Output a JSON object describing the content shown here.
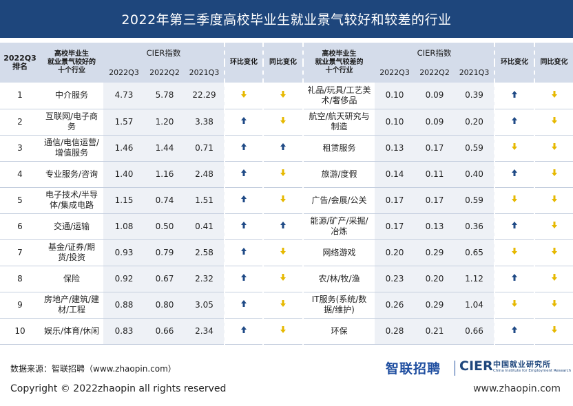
{
  "title": "2022年第三季度高校毕业生就业景气较好和较差的行业",
  "colors": {
    "header_bg": "#1e467c",
    "table_header_bg": "#d4dcea",
    "up_arrow": "#1f4a86",
    "down_arrow": "#e6b800"
  },
  "headers": {
    "rank": "2022Q3\n排名",
    "good_industry": "高校毕业生\n就业景气较好的\n十个行业",
    "bad_industry": "高校毕业生\n就业景气较差的\n十个行业",
    "cier_index": "CIER指数",
    "q2022q3": "2022Q3",
    "q2022q2": "2022Q2",
    "q2021q3": "2021Q3",
    "qoq": "环比变化",
    "yoy": "同比变化"
  },
  "chart_data": {
    "type": "table",
    "title": "2022年第三季度高校毕业生就业景气较好和较差的行业",
    "columns": [
      "2022Q3排名",
      "高校毕业生就业景气较好的十个行业",
      "2022Q3",
      "2022Q2",
      "2021Q3",
      "环比变化",
      "同比变化",
      "高校毕业生就业景气较差的十个行业",
      "2022Q3",
      "2022Q2",
      "2021Q3",
      "环比变化",
      "同比变化"
    ],
    "rows": [
      {
        "rank": "1",
        "good": {
          "name": "中介服务",
          "q3": "4.73",
          "q2": "5.78",
          "y": "22.29",
          "qoq": "down",
          "yoy": "down"
        },
        "bad": {
          "name": "礼品/玩具/工艺美术/奢侈品",
          "q3": "0.10",
          "q2": "0.09",
          "y": "0.39",
          "qoq": "up",
          "yoy": "down"
        }
      },
      {
        "rank": "2",
        "good": {
          "name": "互联网/电子商务",
          "q3": "1.57",
          "q2": "1.20",
          "y": "3.38",
          "qoq": "up",
          "yoy": "down"
        },
        "bad": {
          "name": "航空/航天研究与制造",
          "q3": "0.10",
          "q2": "0.09",
          "y": "0.20",
          "qoq": "up",
          "yoy": "down"
        }
      },
      {
        "rank": "3",
        "good": {
          "name": "通信/电信运营/增值服务",
          "q3": "1.46",
          "q2": "1.44",
          "y": "0.71",
          "qoq": "up",
          "yoy": "up"
        },
        "bad": {
          "name": "租赁服务",
          "q3": "0.13",
          "q2": "0.17",
          "y": "0.59",
          "qoq": "down",
          "yoy": "down"
        }
      },
      {
        "rank": "4",
        "good": {
          "name": "专业服务/咨询",
          "q3": "1.40",
          "q2": "1.16",
          "y": "2.48",
          "qoq": "up",
          "yoy": "down"
        },
        "bad": {
          "name": "旅游/度假",
          "q3": "0.14",
          "q2": "0.11",
          "y": "0.40",
          "qoq": "up",
          "yoy": "down"
        }
      },
      {
        "rank": "5",
        "good": {
          "name": "电子技术/半导体/集成电路",
          "q3": "1.15",
          "q2": "0.74",
          "y": "1.51",
          "qoq": "up",
          "yoy": "down"
        },
        "bad": {
          "name": "广告/会展/公关",
          "q3": "0.17",
          "q2": "0.17",
          "y": "0.59",
          "qoq": "down",
          "yoy": "down"
        }
      },
      {
        "rank": "6",
        "good": {
          "name": "交通/运输",
          "q3": "1.08",
          "q2": "0.50",
          "y": "0.41",
          "qoq": "up",
          "yoy": "up"
        },
        "bad": {
          "name": "能源/矿产/采掘/冶炼",
          "q3": "0.17",
          "q2": "0.13",
          "y": "0.36",
          "qoq": "up",
          "yoy": "down"
        }
      },
      {
        "rank": "7",
        "good": {
          "name": "基金/证券/期货/投资",
          "q3": "0.93",
          "q2": "0.79",
          "y": "2.58",
          "qoq": "up",
          "yoy": "down"
        },
        "bad": {
          "name": "网络游戏",
          "q3": "0.20",
          "q2": "0.29",
          "y": "0.65",
          "qoq": "down",
          "yoy": "down"
        }
      },
      {
        "rank": "8",
        "good": {
          "name": "保险",
          "q3": "0.92",
          "q2": "0.67",
          "y": "2.32",
          "qoq": "up",
          "yoy": "down"
        },
        "bad": {
          "name": "农/林/牧/渔",
          "q3": "0.23",
          "q2": "0.20",
          "y": "1.12",
          "qoq": "up",
          "yoy": "down"
        }
      },
      {
        "rank": "9",
        "good": {
          "name": "房地产/建筑/建材/工程",
          "q3": "0.88",
          "q2": "0.80",
          "y": "3.05",
          "qoq": "up",
          "yoy": "down"
        },
        "bad": {
          "name": "IT服务(系统/数据/维护)",
          "q3": "0.26",
          "q2": "0.29",
          "y": "1.04",
          "qoq": "down",
          "yoy": "down"
        }
      },
      {
        "rank": "10",
        "good": {
          "name": "娱乐/体育/休闲",
          "q3": "0.83",
          "q2": "0.66",
          "y": "2.34",
          "qoq": "up",
          "yoy": "down"
        },
        "bad": {
          "name": "环保",
          "q3": "0.28",
          "q2": "0.21",
          "y": "0.66",
          "qoq": "up",
          "yoy": "down"
        }
      }
    ]
  },
  "footer": {
    "source": "数据来源：智联招聘（www.zhaopin.com）",
    "copyright": "Copyright ©  2022zhaopin all rights reserved",
    "url": "www.zhaopin.com",
    "logo_zl": "智联招聘",
    "logo_cier": "CIER",
    "logo_cn": "中国就业研究所",
    "logo_en": "China Institute for Employment Research"
  }
}
